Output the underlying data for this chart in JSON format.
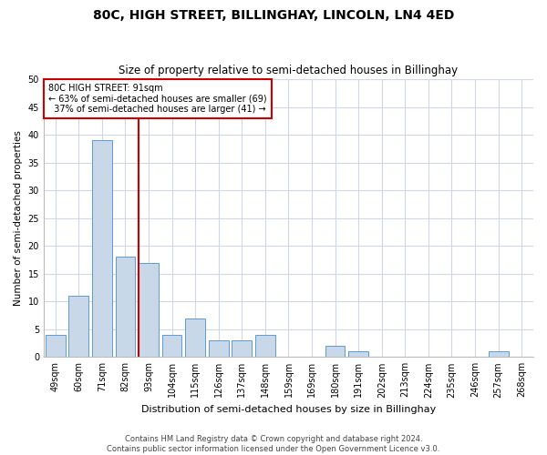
{
  "title": "80C, HIGH STREET, BILLINGHAY, LINCOLN, LN4 4ED",
  "subtitle": "Size of property relative to semi-detached houses in Billinghay",
  "xlabel": "Distribution of semi-detached houses by size in Billinghay",
  "ylabel": "Number of semi-detached properties",
  "categories": [
    "49sqm",
    "60sqm",
    "71sqm",
    "82sqm",
    "93sqm",
    "104sqm",
    "115sqm",
    "126sqm",
    "137sqm",
    "148sqm",
    "159sqm",
    "169sqm",
    "180sqm",
    "191sqm",
    "202sqm",
    "213sqm",
    "224sqm",
    "235sqm",
    "246sqm",
    "257sqm",
    "268sqm"
  ],
  "values": [
    4,
    11,
    39,
    18,
    17,
    4,
    7,
    3,
    3,
    4,
    0,
    0,
    2,
    1,
    0,
    0,
    0,
    0,
    0,
    1,
    0
  ],
  "bar_color": "#c8d8e8",
  "bar_edge_color": "#5b9bd5",
  "reference_line_index": 4,
  "reference_line_label": "80C HIGH STREET: 91sqm",
  "pct_smaller": 63,
  "pct_smaller_count": 69,
  "pct_larger": 37,
  "pct_larger_count": 41,
  "ylim": [
    0,
    50
  ],
  "yticks": [
    0,
    5,
    10,
    15,
    20,
    25,
    30,
    35,
    40,
    45,
    50
  ],
  "footer_line1": "Contains HM Land Registry data © Crown copyright and database right 2024.",
  "footer_line2": "Contains public sector information licensed under the Open Government Licence v3.0.",
  "bg_color": "#ffffff",
  "grid_color": "#d0d8e8",
  "annotation_box_color": "#cc0000",
  "title_fontsize": 10,
  "subtitle_fontsize": 8.5,
  "xlabel_fontsize": 8,
  "ylabel_fontsize": 7.5,
  "tick_fontsize": 7,
  "annot_fontsize": 7,
  "footer_fontsize": 6
}
